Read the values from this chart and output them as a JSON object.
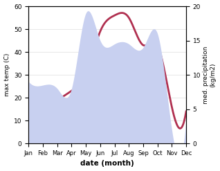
{
  "months": [
    "Jan",
    "Feb",
    "Mar",
    "Apr",
    "May",
    "Jun",
    "Jul",
    "Aug",
    "Sep",
    "Oct",
    "Nov",
    "Dec"
  ],
  "month_indices": [
    0,
    1,
    2,
    3,
    4,
    5,
    6,
    7,
    8,
    9,
    10,
    11
  ],
  "temperature": [
    13,
    17,
    19,
    23,
    30,
    49,
    56,
    55,
    43,
    43,
    16,
    14
  ],
  "precipitation": [
    9.0,
    8.5,
    8.0,
    8.0,
    19.0,
    15.0,
    14.5,
    14.5,
    14.0,
    16.0,
    2.0,
    3.5
  ],
  "temp_color": "#b03050",
  "precip_fill_color": "#c8d0f0",
  "xlabel": "date (month)",
  "ylabel_left": "max temp (C)",
  "ylabel_right": "med. precipitation\n(kg/m2)",
  "ylim_left": [
    0,
    60
  ],
  "ylim_right": [
    0,
    20
  ],
  "yticks_left": [
    0,
    10,
    20,
    30,
    40,
    50,
    60
  ],
  "yticks_right": [
    0,
    5,
    10,
    15,
    20
  ],
  "bg_color": "#ffffff",
  "temp_linewidth": 2.0
}
